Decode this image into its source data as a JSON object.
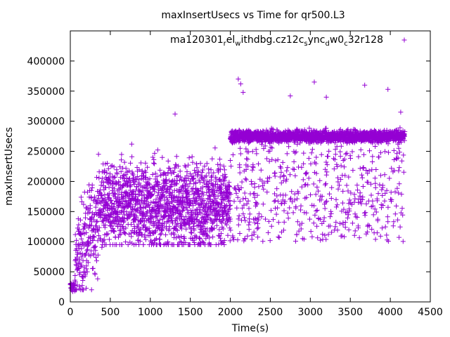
{
  "chart_data": {
    "type": "scatter",
    "title": "maxInsertUsecs vs Time for qr500.L3",
    "xlabel": "Time(s)",
    "ylabel": "maxInsertUsecs",
    "xlim": [
      0,
      4500
    ],
    "ylim": [
      0,
      450000
    ],
    "x_ticks": [
      0,
      500,
      1000,
      1500,
      2000,
      2500,
      3000,
      3500,
      4000,
      4500
    ],
    "y_ticks": [
      0,
      50000,
      100000,
      150000,
      200000,
      250000,
      300000,
      350000,
      400000
    ],
    "x_tick_labels": [
      "0",
      "500",
      "1000",
      "1500",
      "2000",
      "2500",
      "3000",
      "3500",
      "4000",
      "4500"
    ],
    "y_tick_labels": [
      "0",
      "50000",
      "100000",
      "150000",
      "200000",
      "250000",
      "300000",
      "350000",
      "400000"
    ],
    "grid": false,
    "legend_position": "top-right",
    "legend": {
      "parts": [
        "ma120301",
        "r",
        "el",
        "w",
        "ithdbg.cz12c",
        "s",
        "ync",
        "d",
        "w0",
        "c",
        "32r128"
      ],
      "text": "ma120301_rel_withdbg.cz12c_sync_dw0_c32r128"
    },
    "series": [
      {
        "name": "ma120301_rel_withdbg.cz12c_sync_dw0_c32r128",
        "color": "#9400d3",
        "marker": "plus",
        "distribution_description": "approx 4000 points, one per second",
        "segments": [
          {
            "x_range": [
              0,
              60
            ],
            "y_center": 25000,
            "y_spread": 8000
          },
          {
            "x_range": [
              60,
              400
            ],
            "y_center": 130000,
            "y_spread": 45000
          },
          {
            "x_range": [
              400,
              2000
            ],
            "y_center": 160000,
            "y_spread": 35000
          },
          {
            "x_range": [
              2000,
              4180
            ],
            "y_band": 275000,
            "y_band_spread": 5000,
            "y_scatter_range": [
              100000,
              260000
            ]
          }
        ],
        "notable_points": [
          {
            "x": 1310,
            "y": 312000
          },
          {
            "x": 2100,
            "y": 370000
          },
          {
            "x": 2130,
            "y": 362000
          },
          {
            "x": 2160,
            "y": 348000
          },
          {
            "x": 3050,
            "y": 365000
          },
          {
            "x": 3680,
            "y": 360000
          },
          {
            "x": 3970,
            "y": 353000
          },
          {
            "x": 2750,
            "y": 342000
          },
          {
            "x": 3200,
            "y": 340000
          },
          {
            "x": 4130,
            "y": 315000
          }
        ]
      }
    ]
  }
}
